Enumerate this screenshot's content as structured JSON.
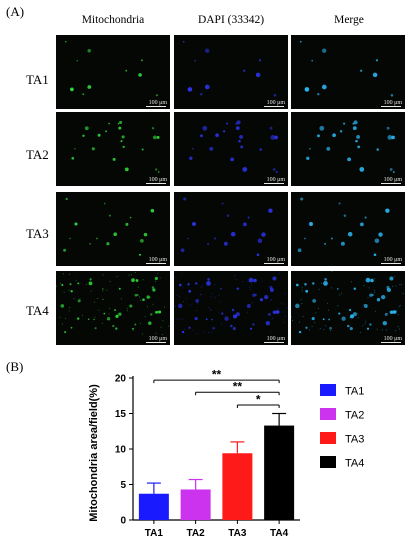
{
  "panel_a_label": "(A)",
  "panel_b_label": "(B)",
  "columns": [
    "Mitochondria",
    "DAPI (33342)",
    "Merge"
  ],
  "rows": [
    "TA1",
    "TA2",
    "TA3",
    "TA4"
  ],
  "scale_bar_text": "100 μm",
  "colors": {
    "mito": "#2fd93a",
    "dapi": "#2a34e8",
    "merge": "#2ab4f0"
  },
  "chart_data": {
    "type": "bar",
    "categories": [
      "TA1",
      "TA2",
      "TA3",
      "TA4"
    ],
    "values": [
      3.7,
      4.3,
      9.4,
      13.3
    ],
    "errors": [
      1.5,
      1.4,
      1.6,
      1.7
    ],
    "bar_colors": [
      "#1a1aff",
      "#cc33ee",
      "#ff1a1a",
      "#000000"
    ],
    "ylabel": "Mitochondria area/field(%)",
    "ylim": [
      0,
      20
    ],
    "yticks": [
      0,
      5,
      10,
      15,
      20
    ],
    "legend": [
      "TA1",
      "TA2",
      "TA3",
      "TA4"
    ],
    "significance": [
      {
        "from": "TA1",
        "to": "TA4",
        "label": "**"
      },
      {
        "from": "TA2",
        "to": "TA4",
        "label": "**"
      },
      {
        "from": "TA3",
        "to": "TA4",
        "label": "*"
      }
    ]
  }
}
